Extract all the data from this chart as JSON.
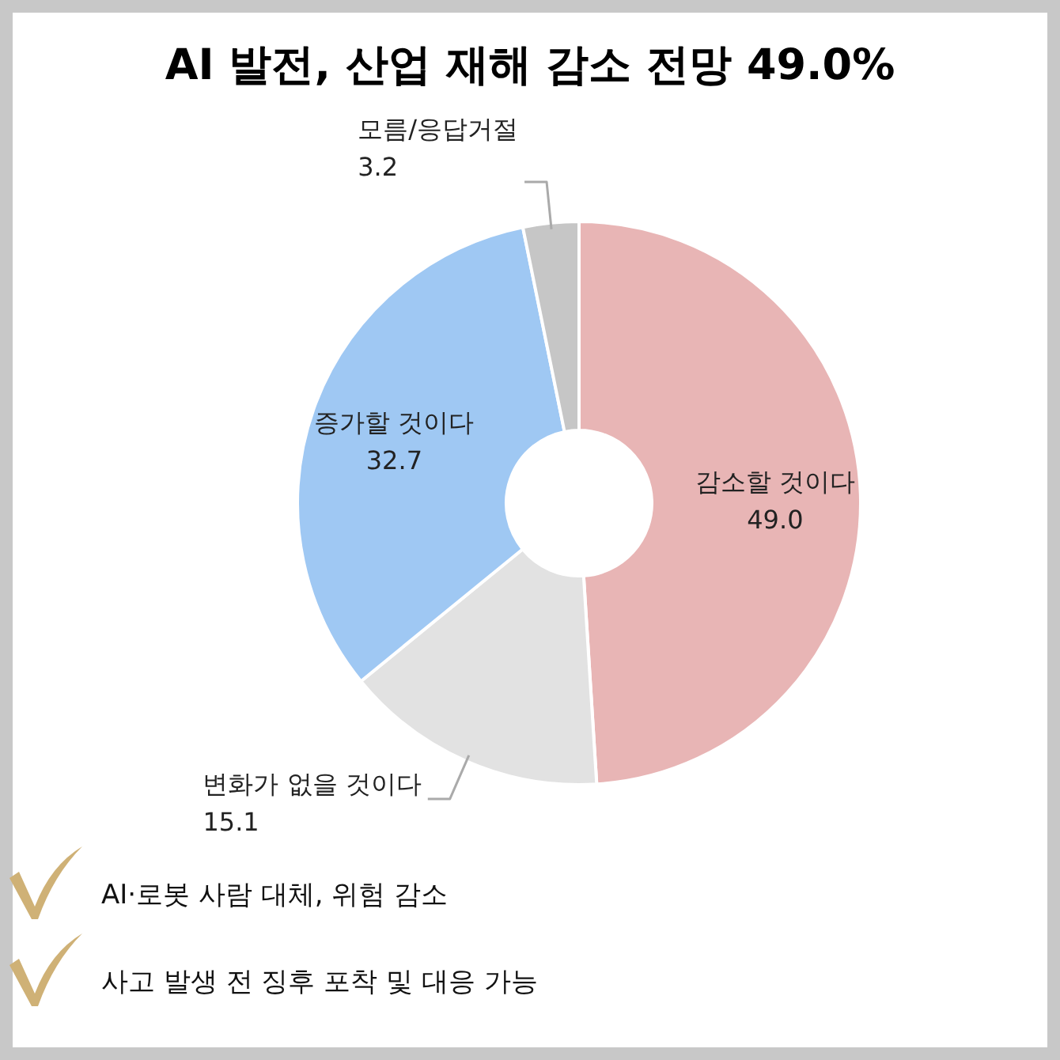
{
  "chart_data": {
    "type": "donut",
    "title": "**AI** 발전, 산업 재해 감소 전망 **49.0%**",
    "categories": [
      "감소할 것이다",
      "변화가 없을 것이다",
      "증가할 것이다",
      "모름/응답거절"
    ],
    "values": [
      49.0,
      15.1,
      32.7,
      3.2
    ],
    "colors": [
      "#e8b5b5",
      "#e2e2e2",
      "#9fc8f3",
      "#c6c6c6"
    ],
    "value_labels": [
      "49.0",
      "15.1",
      "32.7",
      "3.2"
    ],
    "annotations": [
      "AI·로봇 사람 대체, 위험 감소",
      "사고 발생 전 징후 포착 및 대응 가능"
    ]
  }
}
